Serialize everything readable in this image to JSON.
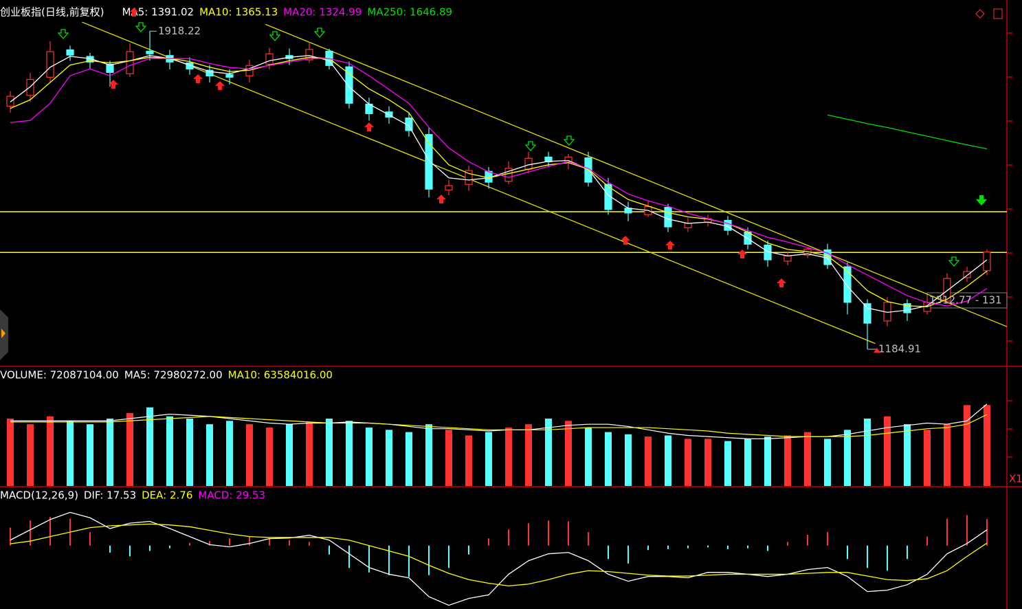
{
  "chart_data": [
    {
      "type": "candlestick",
      "title": "创业板指(日线,前复权)",
      "up_color": "#ff3232",
      "down_color": "#54ffff",
      "open": [
        1745,
        1770,
        1812,
        1875,
        1860,
        1842,
        1820,
        1872,
        1862,
        1845,
        1828,
        1818,
        1815,
        1842,
        1862,
        1852,
        1872,
        1836,
        1750,
        1732,
        1718,
        1680,
        1552,
        1565,
        1595,
        1572,
        1600,
        1628,
        1615,
        1626,
        1565,
        1510,
        1495,
        1512,
        1465,
        1478,
        1482,
        1455,
        1425,
        1388,
        1402,
        1414,
        1375,
        1290,
        1250,
        1290,
        1272,
        1296,
        1350,
        1366
      ],
      "high": [
        1780,
        1822,
        1895,
        1885,
        1868,
        1850,
        1890,
        1918.22,
        1875,
        1858,
        1840,
        1830,
        1852,
        1880,
        1878,
        1893,
        1878,
        1848,
        1765,
        1745,
        1730,
        1695,
        1575,
        1608,
        1605,
        1618,
        1640,
        1640,
        1635,
        1640,
        1580,
        1525,
        1528,
        1520,
        1488,
        1495,
        1492,
        1466,
        1435,
        1408,
        1420,
        1428,
        1385,
        1300,
        1305,
        1300,
        1305,
        1360,
        1375,
        1415
      ],
      "low": [
        1730,
        1755,
        1800,
        1850,
        1830,
        1790,
        1812,
        1850,
        1830,
        1818,
        1800,
        1795,
        1800,
        1830,
        1840,
        1845,
        1830,
        1740,
        1712,
        1705,
        1675,
        1535,
        1540,
        1550,
        1555,
        1565,
        1590,
        1605,
        1600,
        1560,
        1495,
        1480,
        1490,
        1455,
        1455,
        1468,
        1448,
        1415,
        1375,
        1378,
        1395,
        1370,
        1265,
        1184.91,
        1238,
        1250,
        1265,
        1290,
        1340,
        1355
      ],
      "close": [
        1768,
        1807,
        1871,
        1863,
        1847,
        1823,
        1871,
        1866,
        1847,
        1831,
        1815,
        1812,
        1839,
        1866,
        1855,
        1876,
        1839,
        1752,
        1728,
        1720,
        1689,
        1554,
        1562,
        1597,
        1570,
        1602,
        1625,
        1617,
        1628,
        1570,
        1507,
        1499,
        1514,
        1467,
        1475,
        1486,
        1459,
        1427,
        1391,
        1400,
        1416,
        1380,
        1293,
        1245,
        1293,
        1269,
        1293,
        1348,
        1364,
        1409
      ],
      "series": [
        {
          "name": "MA5: 1391.02",
          "color": "#ffffff",
          "values": [
            1755,
            1790,
            1835,
            1860,
            1855,
            1840,
            1850,
            1862,
            1855,
            1840,
            1825,
            1820,
            1832,
            1850,
            1858,
            1862,
            1850,
            1790,
            1750,
            1725,
            1700,
            1620,
            1580,
            1575,
            1580,
            1595,
            1610,
            1618,
            1620,
            1600,
            1540,
            1510,
            1505,
            1485,
            1475,
            1478,
            1468,
            1440,
            1410,
            1400,
            1405,
            1395,
            1330,
            1280,
            1270,
            1275,
            1285,
            1320,
            1355,
            1391.02
          ]
        },
        {
          "name": "MA10: 1365.13",
          "color": "#ffff00",
          "values": [
            1740,
            1760,
            1800,
            1840,
            1850,
            1845,
            1850,
            1858,
            1856,
            1848,
            1835,
            1825,
            1828,
            1840,
            1850,
            1858,
            1855,
            1820,
            1785,
            1760,
            1730,
            1660,
            1610,
            1590,
            1580,
            1590,
            1600,
            1610,
            1615,
            1600,
            1560,
            1530,
            1515,
            1500,
            1490,
            1485,
            1475,
            1455,
            1430,
            1415,
            1410,
            1400,
            1365,
            1320,
            1295,
            1285,
            1283,
            1300,
            1330,
            1365.13
          ]
        },
        {
          "name": "MA20: 1324.99",
          "color": "#ff00ff",
          "values": [
            1707.6,
            1712.4,
            1752,
            1815.4,
            1831.2,
            1815.4,
            1839.1,
            1855,
            1855,
            1855,
            1843.9,
            1834.4,
            1831.2,
            1839.1,
            1847,
            1855,
            1855,
            1843.9,
            1815.4,
            1783.7,
            1752,
            1696.6,
            1649,
            1617.4,
            1593.6,
            1580.9,
            1593.6,
            1606.3,
            1617.4,
            1601.5,
            1569.8,
            1542.9,
            1527.1,
            1514.4,
            1498.6,
            1485.9,
            1474.8,
            1459,
            1443.1,
            1432,
            1419.4,
            1406.7,
            1379.8,
            1356,
            1332.3,
            1308.5,
            1292.6,
            1284.7,
            1295.8,
            1324.99
          ]
        },
        {
          "name": "MA250: 1646.89",
          "color": "#00e000",
          "values": [
            null,
            null,
            null,
            null,
            null,
            null,
            null,
            null,
            null,
            null,
            null,
            null,
            null,
            null,
            null,
            null,
            null,
            null,
            null,
            null,
            null,
            null,
            null,
            null,
            null,
            null,
            null,
            null,
            null,
            null,
            null,
            null,
            null,
            null,
            null,
            null,
            null,
            null,
            null,
            null,
            null,
            1725,
            1715,
            1705,
            1696,
            1686,
            1676,
            1666,
            1656,
            1646.89
          ]
        }
      ],
      "hlines": [
        1502,
        1408
      ],
      "hline_color": "#ffff00",
      "trend_lines": [
        {
          "x": [
            3.6,
            43.4
          ],
          "y": [
            1939,
            1198
          ]
        },
        {
          "x": [
            12.8,
            50
          ],
          "y": [
            1934,
            1237
          ]
        }
      ],
      "trend_color": "#e0e000",
      "annotations": [
        "1918.22",
        "1184.91",
        "1312.77 - 131"
      ],
      "ylim": [
        1147,
        1990
      ]
    },
    {
      "type": "bar",
      "title": "VOLUME: 72087104.00",
      "values": [
        60000000,
        55000000,
        62000000,
        58000000,
        55000000,
        60000000,
        65000000,
        70000000,
        62000000,
        60000000,
        55000000,
        58000000,
        55000000,
        52000000,
        55000000,
        57000000,
        60000000,
        58000000,
        52000000,
        50000000,
        48000000,
        55000000,
        50000000,
        45000000,
        48000000,
        52000000,
        55000000,
        60000000,
        58000000,
        52000000,
        48000000,
        46000000,
        44000000,
        45000000,
        42000000,
        42000000,
        40000000,
        42000000,
        44000000,
        45000000,
        48000000,
        42000000,
        50000000,
        60000000,
        62000000,
        55000000,
        50000000,
        55000000,
        72000000,
        72087104
      ],
      "series": [
        {
          "name": "MA5: 72980272.00",
          "color": "#ffffff",
          "values": [
            58000000,
            58000000,
            58000000,
            58000000,
            58000000,
            58000000,
            60000000,
            62000000,
            64000000,
            63000000,
            62000000,
            60000000,
            58000000,
            56000000,
            55000000,
            56000000,
            56000000,
            57000000,
            56000000,
            55000000,
            53000000,
            51000000,
            51000000,
            50000000,
            49000000,
            50000000,
            50000000,
            52000000,
            54000000,
            55000000,
            55000000,
            53000000,
            50000000,
            47000000,
            45000000,
            44000000,
            43000000,
            42000000,
            42000000,
            43000000,
            44000000,
            44000000,
            46000000,
            49000000,
            52000000,
            54000000,
            56000000,
            55000000,
            58000000,
            72980272
          ]
        },
        {
          "name": "MA10: 63584016.00",
          "color": "#ffff00",
          "values": [
            57000000,
            57000000,
            57000000,
            57000000,
            57000000,
            57000000,
            58000000,
            59000000,
            60000000,
            61000000,
            62000000,
            61000000,
            60000000,
            59000000,
            58000000,
            57000000,
            56000000,
            56000000,
            56000000,
            55000000,
            54000000,
            53000000,
            52000000,
            51000000,
            50000000,
            50000000,
            50000000,
            50000000,
            51000000,
            52000000,
            52000000,
            52000000,
            52000000,
            51000000,
            50000000,
            49000000,
            47000000,
            46000000,
            45000000,
            44000000,
            44000000,
            44000000,
            44000000,
            45000000,
            47000000,
            49000000,
            51000000,
            52000000,
            55000000,
            63584016
          ]
        }
      ],
      "corner_label": "X1",
      "ylim": [
        0,
        90000000
      ]
    },
    {
      "type": "macd",
      "title": "MACD(12,26,9)",
      "series": [
        {
          "name": "DIF: 17.53",
          "color": "#ffffff",
          "values": [
            6.1,
            17.6,
            29,
            37,
            31,
            19,
            25,
            27,
            19,
            10,
            1,
            -1.5,
            2.3,
            7.7,
            8.4,
            11.5,
            6.1,
            -9.2,
            -24.5,
            -32,
            -36,
            -57,
            -66.6,
            -59,
            -55,
            -32,
            -16.9,
            -9.2,
            -7.7,
            -16.9,
            -32,
            -39.8,
            -34.5,
            -34.5,
            -36,
            -29.9,
            -29.9,
            -32,
            -34.5,
            -32,
            -26.8,
            -24.5,
            -34.5,
            -51.3,
            -49.8,
            -43.7,
            -32,
            -9.2,
            2.3,
            17.53
          ]
        },
        {
          "name": "DEA: 2.76",
          "color": "#ffff00",
          "values": [
            2,
            5,
            10,
            15,
            20,
            22,
            23,
            24,
            23,
            21,
            17,
            13,
            10,
            9,
            9,
            9,
            9,
            6,
            0,
            -6,
            -12,
            -22,
            -31,
            -38,
            -42,
            -45,
            -43,
            -38,
            -32,
            -28,
            -29,
            -31,
            -33,
            -34,
            -34,
            -33,
            -32,
            -32,
            -32,
            -32,
            -31,
            -30,
            -30,
            -34,
            -38,
            -39,
            -37,
            -28,
            -12,
            2.76
          ]
        }
      ],
      "histogram": {
        "name": "MACD: 29.53",
        "color": "#ff00ff",
        "values": [
          20,
          28,
          32,
          30,
          15,
          -8,
          -12,
          -6,
          -3,
          3,
          5,
          8,
          10,
          8,
          6,
          4,
          -10,
          -25,
          -30,
          -33,
          -35,
          -33,
          -25,
          -10,
          8,
          18,
          25,
          28,
          27,
          15,
          -15,
          -20,
          -5,
          -4,
          -3,
          -2,
          -4,
          -3,
          -6,
          4,
          12,
          15,
          -15,
          -25,
          -28,
          -15,
          10,
          30,
          34,
          29.53
        ]
      },
      "ylim": [
        -70,
        45
      ]
    }
  ]
}
